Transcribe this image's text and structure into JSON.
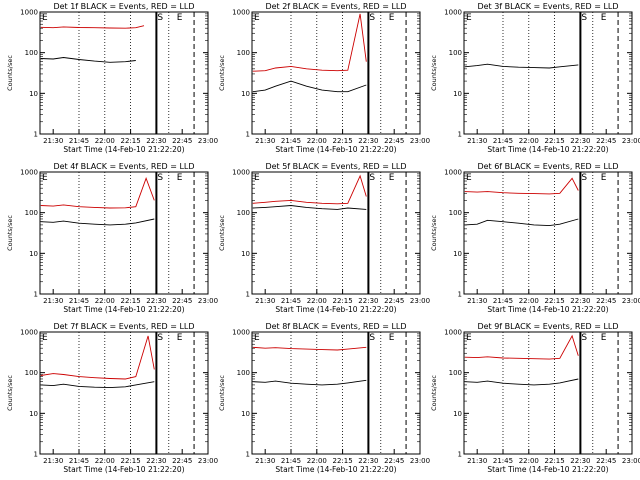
{
  "chart_data": [
    {
      "type": "line",
      "title": "Det 1f BLACK = Events, RED = LLD",
      "xlabel": "Start Time (14-Feb-10 21:22:20)",
      "ylabel": "Counts/sec",
      "ylim": [
        1,
        1000
      ],
      "yscale": "log",
      "xticks": [
        "21:30",
        "21:45",
        "22:00",
        "22:15",
        "22:30",
        "22:45",
        "23:00"
      ],
      "yticks": [
        "1",
        "10",
        "100",
        "1000"
      ],
      "markers": [
        "E",
        "S",
        "E"
      ],
      "series": [
        {
          "color": "#cc0000",
          "role": "LLD",
          "x": [
            21.38,
            21.5,
            21.6,
            21.75,
            21.9,
            22.05,
            22.2,
            22.3,
            22.38,
            22.5
          ],
          "y": [
            420,
            410,
            430,
            415,
            410,
            405,
            400,
            410,
            460,
            440
          ]
        },
        {
          "color": "#000000",
          "role": "Events",
          "x": [
            21.38,
            21.5,
            21.6,
            21.75,
            21.9,
            22.05,
            22.2,
            22.3
          ],
          "y": [
            72,
            70,
            76,
            68,
            62,
            58,
            60,
            64
          ]
        }
      ]
    },
    {
      "type": "line",
      "title": "Det 2f BLACK = Events, RED = LLD",
      "xlabel": "Start Time (14-Feb-10 21:22:20)",
      "ylabel": "Counts/sec",
      "ylim": [
        1,
        1000
      ],
      "yscale": "log",
      "xticks": [
        "21:30",
        "21:45",
        "22:00",
        "22:15",
        "22:30",
        "22:45",
        "23:00"
      ],
      "yticks": [
        "1",
        "10",
        "100",
        "1000"
      ],
      "markers": [
        "E",
        "S",
        "E"
      ],
      "series": [
        {
          "color": "#cc0000",
          "role": "LLD",
          "x": [
            21.38,
            21.5,
            21.6,
            21.75,
            21.9,
            22.05,
            22.2,
            22.3,
            22.42,
            22.48,
            22.55
          ],
          "y": [
            35,
            36,
            42,
            46,
            40,
            37,
            36,
            37,
            900,
            60,
            30
          ]
        },
        {
          "color": "#000000",
          "role": "Events",
          "x": [
            21.38,
            21.5,
            21.6,
            21.75,
            21.9,
            22.05,
            22.2,
            22.3,
            22.48,
            22.55
          ],
          "y": [
            11,
            12,
            15,
            20,
            15,
            12,
            11,
            11,
            16,
            10
          ]
        }
      ]
    },
    {
      "type": "line",
      "title": "Det 3f BLACK = Events, RED = LLD",
      "xlabel": "Start Time (14-Feb-10 21:22:20)",
      "ylabel": "Counts/sec",
      "ylim": [
        1,
        1000
      ],
      "yscale": "log",
      "xticks": [
        "21:30",
        "21:45",
        "22:00",
        "22:15",
        "22:30",
        "22:45",
        "23:00"
      ],
      "yticks": [
        "1",
        "10",
        "100",
        "1000"
      ],
      "markers": [
        "E",
        "S",
        "E"
      ],
      "series": [
        {
          "color": "#000000",
          "role": "Events",
          "x": [
            21.38,
            21.5,
            21.6,
            21.75,
            21.9,
            22.05,
            22.2,
            22.3,
            22.48,
            22.55
          ],
          "y": [
            45,
            48,
            52,
            46,
            44,
            43,
            42,
            45,
            50,
            48
          ]
        }
      ]
    },
    {
      "type": "line",
      "title": "Det 4f BLACK = Events, RED = LLD",
      "xlabel": "Start Time (14-Feb-10 21:22:20)",
      "ylabel": "Counts/sec",
      "ylim": [
        1,
        1000
      ],
      "yscale": "log",
      "xticks": [
        "21:30",
        "21:45",
        "22:00",
        "22:15",
        "22:30",
        "22:45",
        "23:00"
      ],
      "yticks": [
        "1",
        "10",
        "100",
        "1000"
      ],
      "markers": [
        "E",
        "S",
        "E"
      ],
      "series": [
        {
          "color": "#cc0000",
          "role": "LLD",
          "x": [
            21.38,
            21.5,
            21.6,
            21.75,
            21.9,
            22.05,
            22.2,
            22.3,
            22.4,
            22.48,
            22.55
          ],
          "y": [
            150,
            145,
            155,
            140,
            135,
            130,
            132,
            140,
            700,
            200,
            180
          ]
        },
        {
          "color": "#000000",
          "role": "Events",
          "x": [
            21.38,
            21.5,
            21.6,
            21.75,
            21.9,
            22.05,
            22.2,
            22.3,
            22.48,
            22.55
          ],
          "y": [
            60,
            58,
            62,
            55,
            52,
            50,
            52,
            56,
            70,
            60
          ]
        }
      ]
    },
    {
      "type": "line",
      "title": "Det 5f BLACK = Events, RED = LLD",
      "xlabel": "Start Time (14-Feb-10 21:22:20)",
      "ylabel": "Counts/sec",
      "ylim": [
        1,
        1000
      ],
      "yscale": "log",
      "xticks": [
        "21:30",
        "21:45",
        "22:00",
        "22:15",
        "22:30",
        "22:45",
        "23:00"
      ],
      "yticks": [
        "1",
        "10",
        "100",
        "1000"
      ],
      "markers": [
        "E",
        "S",
        "E"
      ],
      "series": [
        {
          "color": "#cc0000",
          "role": "LLD",
          "x": [
            21.38,
            21.5,
            21.6,
            21.75,
            21.9,
            22.05,
            22.2,
            22.3,
            22.42,
            22.48,
            22.55
          ],
          "y": [
            170,
            180,
            190,
            200,
            180,
            170,
            165,
            170,
            800,
            250,
            200
          ]
        },
        {
          "color": "#000000",
          "role": "Events",
          "x": [
            21.38,
            21.5,
            21.6,
            21.75,
            21.9,
            22.05,
            22.2,
            22.3,
            22.48,
            22.55
          ],
          "y": [
            130,
            135,
            140,
            150,
            135,
            125,
            120,
            130,
            120,
            110
          ]
        }
      ]
    },
    {
      "type": "line",
      "title": "Det 6f BLACK = Events, RED = LLD",
      "xlabel": "Start Time (14-Feb-10 21:22:20)",
      "ylabel": "Counts/sec",
      "ylim": [
        1,
        1000
      ],
      "yscale": "log",
      "xticks": [
        "21:30",
        "21:45",
        "22:00",
        "22:15",
        "22:30",
        "22:45",
        "23:00"
      ],
      "yticks": [
        "1",
        "10",
        "100",
        "1000"
      ],
      "markers": [
        "E",
        "S",
        "E"
      ],
      "series": [
        {
          "color": "#cc0000",
          "role": "LLD",
          "x": [
            21.38,
            21.5,
            21.6,
            21.75,
            21.9,
            22.05,
            22.2,
            22.3,
            22.42,
            22.48,
            22.55
          ],
          "y": [
            330,
            320,
            330,
            310,
            300,
            295,
            290,
            300,
            700,
            350,
            300
          ]
        },
        {
          "color": "#000000",
          "role": "Events",
          "x": [
            21.38,
            21.5,
            21.6,
            21.75,
            21.9,
            22.05,
            22.2,
            22.3,
            22.48,
            22.55
          ],
          "y": [
            50,
            52,
            65,
            60,
            55,
            50,
            48,
            52,
            70,
            60
          ]
        }
      ]
    },
    {
      "type": "line",
      "title": "Det 7f BLACK = Events, RED = LLD",
      "xlabel": "Start Time (14-Feb-10 21:22:20)",
      "ylabel": "Counts/sec",
      "ylim": [
        1,
        1000
      ],
      "yscale": "log",
      "xticks": [
        "21:30",
        "21:45",
        "22:00",
        "22:15",
        "22:30",
        "22:45",
        "23:00"
      ],
      "yticks": [
        "1",
        "10",
        "100",
        "1000"
      ],
      "markers": [
        "E",
        "S",
        "E"
      ],
      "series": [
        {
          "color": "#cc0000",
          "role": "LLD",
          "x": [
            21.38,
            21.5,
            21.6,
            21.75,
            21.9,
            22.05,
            22.2,
            22.3,
            22.42,
            22.48,
            22.55
          ],
          "y": [
            85,
            95,
            90,
            80,
            75,
            72,
            70,
            80,
            800,
            120,
            80
          ]
        },
        {
          "color": "#000000",
          "role": "Events",
          "x": [
            21.38,
            21.5,
            21.6,
            21.75,
            21.9,
            22.05,
            22.2,
            22.3,
            22.48,
            22.55
          ],
          "y": [
            50,
            48,
            52,
            46,
            44,
            43,
            45,
            50,
            60,
            50
          ]
        }
      ]
    },
    {
      "type": "line",
      "title": "Det 8f BLACK = Events, RED = LLD",
      "xlabel": "Start Time (14-Feb-10 21:22:20)",
      "ylabel": "Counts/sec",
      "ylim": [
        1,
        1000
      ],
      "yscale": "log",
      "xticks": [
        "21:30",
        "21:45",
        "22:00",
        "22:15",
        "22:30",
        "22:45",
        "23:00"
      ],
      "yticks": [
        "1",
        "10",
        "100",
        "1000"
      ],
      "markers": [
        "E",
        "S",
        "E"
      ],
      "series": [
        {
          "color": "#cc0000",
          "role": "LLD",
          "x": [
            21.38,
            21.5,
            21.6,
            21.75,
            21.9,
            22.05,
            22.2,
            22.3,
            22.48,
            22.55
          ],
          "y": [
            420,
            400,
            410,
            390,
            380,
            370,
            360,
            380,
            420,
            400
          ]
        },
        {
          "color": "#000000",
          "role": "Events",
          "x": [
            21.38,
            21.5,
            21.6,
            21.75,
            21.9,
            22.05,
            22.2,
            22.3,
            22.48,
            22.55
          ],
          "y": [
            60,
            58,
            62,
            55,
            52,
            50,
            52,
            56,
            65,
            55
          ]
        }
      ]
    },
    {
      "type": "line",
      "title": "Det 9f BLACK = Events, RED = LLD",
      "xlabel": "Start Time (14-Feb-10 21:22:20)",
      "ylabel": "Counts/sec",
      "ylim": [
        1,
        1000
      ],
      "yscale": "log",
      "xticks": [
        "21:30",
        "21:45",
        "22:00",
        "22:15",
        "22:30",
        "22:45",
        "23:00"
      ],
      "yticks": [
        "1",
        "10",
        "100",
        "1000"
      ],
      "markers": [
        "E",
        "S",
        "E"
      ],
      "series": [
        {
          "color": "#cc0000",
          "role": "LLD",
          "x": [
            21.38,
            21.5,
            21.6,
            21.75,
            21.9,
            22.05,
            22.2,
            22.3,
            22.42,
            22.48,
            22.55
          ],
          "y": [
            240,
            235,
            245,
            230,
            225,
            220,
            215,
            225,
            800,
            260,
            240
          ]
        },
        {
          "color": "#000000",
          "role": "Events",
          "x": [
            21.38,
            21.5,
            21.6,
            21.75,
            21.9,
            22.05,
            22.2,
            22.3,
            22.48,
            22.55
          ],
          "y": [
            60,
            58,
            62,
            55,
            52,
            50,
            52,
            56,
            70,
            60
          ]
        }
      ]
    }
  ]
}
